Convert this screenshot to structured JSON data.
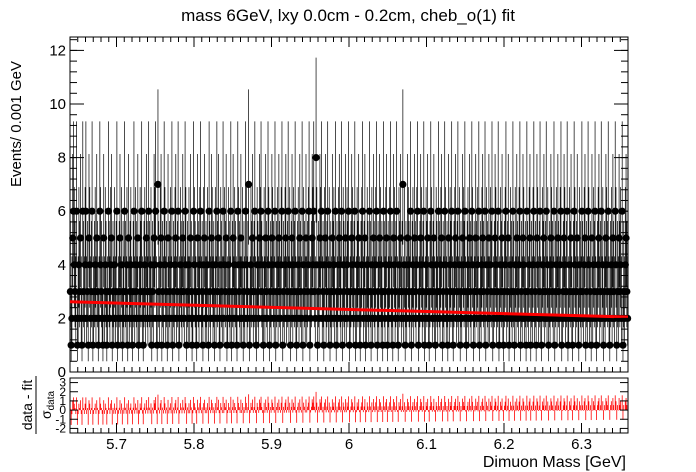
{
  "chart_data": {
    "title": "mass 6GeV, lxy 0.0cm - 0.2cm, cheb_o(1) fit",
    "xlabel": "Dimuon Mass [GeV]",
    "ylabel": "Events/ 0.001 GeV",
    "pull_ylabel_main": "data - fit",
    "pull_ylabel_sub": "σ",
    "pull_ylabel_sub_index": "data",
    "main": {
      "type": "scatter",
      "xlim": [
        5.64,
        6.36
      ],
      "ylim": [
        0,
        12.5
      ],
      "xticks": [
        5.7,
        5.8,
        5.9,
        6.0,
        6.1,
        6.2,
        6.3
      ],
      "xtick_labels": [
        "5.7",
        "5.8",
        "5.9",
        "6",
        "6.1",
        "6.2",
        "6.3"
      ],
      "yticks": [
        0,
        2,
        4,
        6,
        8,
        10,
        12
      ],
      "ytick_labels": [
        "0",
        "2",
        "4",
        "6",
        "8",
        "10",
        "12"
      ],
      "bin_width": 0.001,
      "x_start": 5.6405,
      "bin_counts": [
        3,
        1,
        2,
        5,
        6,
        4,
        3,
        2,
        6,
        1,
        2,
        4,
        3,
        5,
        2,
        1,
        6,
        3,
        2,
        4,
        6,
        2,
        3,
        1,
        5,
        4,
        2,
        3,
        6,
        1,
        2,
        3,
        4,
        2,
        5,
        3,
        1,
        2,
        6,
        4,
        3,
        2,
        1,
        5,
        2,
        4,
        3,
        1,
        2,
        6,
        3,
        2,
        4,
        5,
        1,
        3,
        2,
        4,
        2,
        3,
        6,
        1,
        2,
        3,
        5,
        2,
        4,
        1,
        3,
        2,
        6,
        3,
        2,
        4,
        1,
        5,
        2,
        3,
        4,
        2,
        1,
        3,
        6,
        2,
        4,
        3,
        2,
        5,
        1,
        2,
        4,
        3,
        6,
        2,
        1,
        3,
        4,
        2,
        5,
        3,
        2,
        6,
        3,
        2,
        4,
        1,
        3,
        2,
        5,
        4,
        6,
        2,
        1,
        7,
        3,
        2,
        4,
        5,
        1,
        3,
        2,
        6,
        4,
        2,
        3,
        1,
        5,
        2,
        3,
        4,
        2,
        6,
        1,
        3,
        2,
        4,
        5,
        2,
        3,
        6,
        1,
        2,
        4,
        3,
        2,
        5,
        3,
        2,
        6,
        4,
        1,
        3,
        2,
        4,
        2,
        5,
        3,
        1,
        2,
        6,
        4,
        3,
        2,
        1,
        5,
        3,
        2,
        4,
        6,
        2,
        3,
        1,
        4,
        5,
        2,
        3,
        2,
        4,
        1,
        6,
        3,
        2,
        5,
        4,
        2,
        3,
        1,
        4,
        2,
        6,
        3,
        5,
        2,
        1,
        4,
        3,
        2,
        6,
        2,
        4,
        3,
        5,
        1,
        2,
        4,
        3,
        2,
        6,
        1,
        3,
        5,
        2,
        4,
        3,
        2,
        1,
        6,
        4,
        3,
        2,
        5,
        2,
        4,
        1,
        3,
        2,
        6,
        4,
        2,
        3,
        7,
        1,
        2,
        4,
        3,
        5,
        2,
        3,
        6,
        2,
        1,
        4,
        3,
        2,
        5,
        4,
        6,
        3,
        2,
        1,
        4,
        2,
        5,
        3,
        2,
        6,
        4,
        1,
        3,
        2,
        5,
        4,
        3,
        2,
        6,
        1,
        3,
        4,
        2,
        5,
        3,
        2,
        4,
        6,
        1,
        3,
        2,
        4,
        5,
        2,
        3,
        6,
        2,
        4,
        1,
        3,
        5,
        2,
        4,
        3,
        6,
        2,
        1,
        3,
        4,
        2,
        5,
        3,
        2,
        6,
        1,
        4,
        3,
        2,
        5,
        2,
        3,
        4,
        6,
        1,
        2,
        3,
        5,
        4,
        6,
        3,
        2,
        8,
        4,
        1,
        3,
        2,
        5,
        4,
        6,
        2,
        3,
        1,
        4,
        5,
        2,
        3,
        6,
        2,
        4,
        1,
        3,
        2,
        5,
        3,
        4,
        2,
        6,
        1,
        3,
        2,
        4,
        5,
        3,
        2,
        6,
        1,
        4,
        3,
        2,
        5,
        2,
        4,
        3,
        6,
        1,
        2,
        3,
        5,
        4,
        2,
        3,
        6,
        1,
        2,
        4,
        3,
        5,
        2,
        1,
        3,
        4,
        6,
        2,
        3,
        5,
        1,
        2,
        4,
        3,
        2,
        6,
        3,
        1,
        4,
        2,
        5,
        3,
        2,
        4,
        6,
        1,
        3,
        2,
        5,
        4,
        2,
        3,
        1,
        6,
        3,
        2,
        4,
        5,
        1,
        3,
        2,
        4,
        6,
        2,
        3,
        1,
        5,
        4,
        2,
        3,
        6,
        2,
        1,
        4,
        3,
        5,
        2,
        3,
        7,
        2,
        4,
        1,
        3,
        2,
        5,
        4,
        3,
        2,
        6,
        1,
        3,
        4,
        2,
        5,
        3,
        2,
        4,
        6,
        1,
        2,
        3,
        5,
        4,
        2,
        3,
        6,
        1,
        2,
        4,
        3,
        5,
        2,
        1,
        3,
        6,
        4,
        2,
        3,
        5,
        2,
        1,
        4,
        3,
        2,
        6,
        3,
        2,
        4,
        5,
        1,
        3,
        2,
        6,
        4,
        2,
        3,
        1,
        5,
        2,
        4,
        3,
        6,
        2,
        1,
        3,
        4,
        5,
        2,
        3,
        6,
        2,
        4,
        1,
        3,
        2,
        5,
        4,
        3,
        6,
        2,
        1,
        3,
        4,
        2,
        5,
        3,
        2,
        6,
        4,
        1,
        3,
        2,
        5,
        3,
        4,
        2,
        6,
        1,
        3,
        2,
        4,
        5,
        3,
        2,
        6,
        1,
        4,
        3,
        2,
        5,
        2,
        4,
        3,
        6,
        1,
        2,
        3,
        5,
        4,
        2,
        3,
        6,
        1,
        2,
        4,
        3,
        5,
        2,
        1,
        3,
        4,
        6,
        2,
        3,
        5,
        1,
        2,
        4,
        3,
        2,
        6,
        3,
        1,
        4,
        2,
        5,
        3,
        2,
        4,
        6,
        1,
        3,
        2,
        5,
        4,
        2,
        3,
        1,
        6,
        3,
        2,
        4,
        5,
        1,
        3,
        2,
        4,
        6,
        2,
        3,
        1,
        5,
        4,
        2,
        3,
        6,
        2,
        1,
        4,
        3,
        5,
        2,
        3,
        6,
        2,
        4,
        1,
        3,
        2,
        5,
        4,
        3,
        2,
        6,
        1,
        3,
        4,
        2,
        5,
        3,
        2,
        4,
        6,
        1,
        2,
        3,
        5,
        4,
        2,
        3,
        6,
        1,
        2,
        4,
        3,
        5,
        2,
        1,
        3,
        6,
        4,
        2,
        3,
        5,
        2,
        1,
        4,
        3,
        2,
        6,
        3,
        2,
        4,
        5,
        1,
        3,
        2,
        6,
        4,
        2,
        3,
        1,
        5,
        2,
        4,
        3,
        6,
        2,
        1,
        3,
        4,
        5,
        2,
        3,
        6,
        2,
        4,
        1,
        3,
        2,
        5,
        4,
        3,
        6,
        2,
        1,
        3,
        4,
        2,
        5,
        3,
        2,
        6,
        4,
        1,
        3,
        2,
        5,
        3,
        4,
        2,
        6,
        1,
        3,
        2,
        4,
        5,
        3,
        2,
        6,
        1,
        4,
        3,
        2,
        5,
        2,
        4,
        3,
        6,
        1,
        2,
        3,
        5,
        4,
        2,
        3,
        1,
        2,
        4,
        3,
        5,
        2,
        3
      ],
      "fit": {
        "name": "cheb_o(1) fit",
        "color": "#ff0000",
        "x": [
          5.64,
          6.36
        ],
        "y": [
          2.62,
          2.05
        ]
      },
      "marker_color": "#000000"
    },
    "pull": {
      "type": "bar",
      "ylim": [
        -2.5,
        3.5
      ],
      "yticks": [
        -2,
        -1,
        0,
        1,
        2,
        3
      ],
      "ytick_labels": [
        "-2",
        "-1",
        "0",
        "1",
        "2",
        "3"
      ],
      "color": "#ff0000"
    },
    "grid": false,
    "legend": "none"
  }
}
